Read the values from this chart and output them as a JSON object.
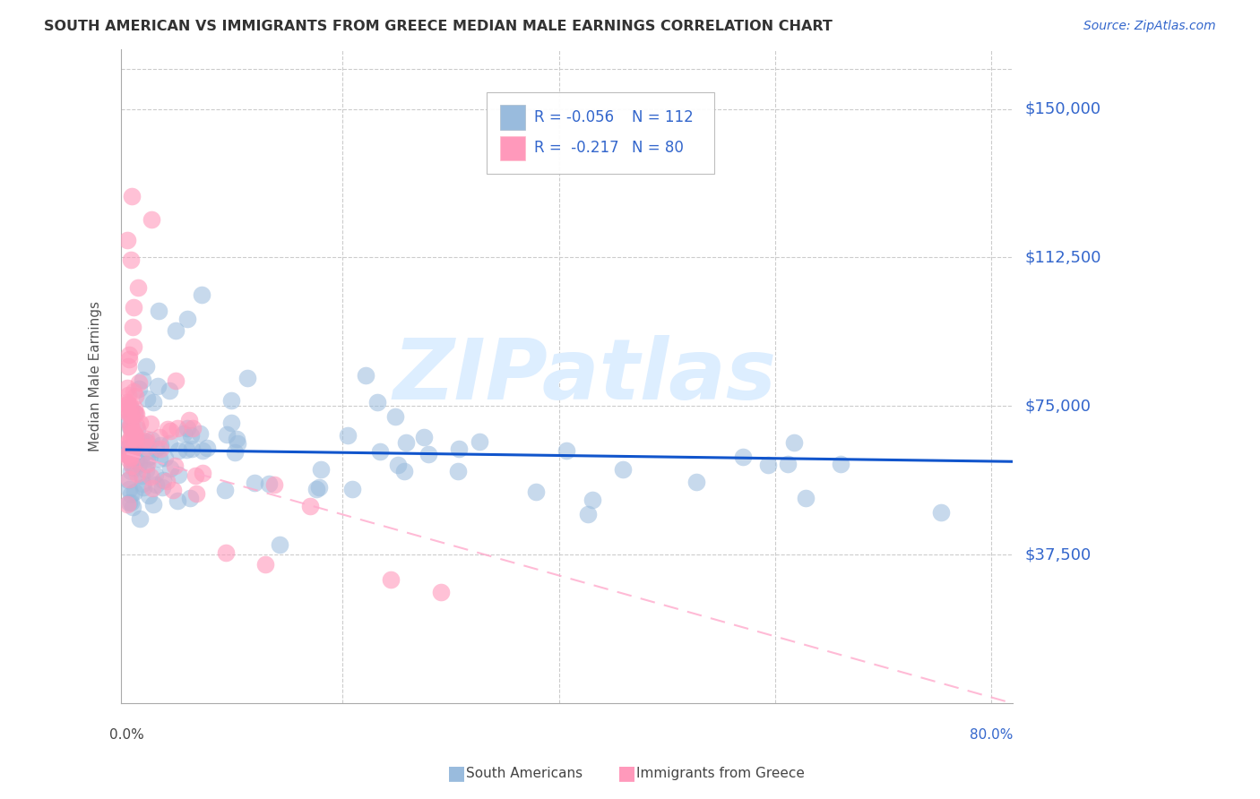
{
  "title": "SOUTH AMERICAN VS IMMIGRANTS FROM GREECE MEDIAN MALE EARNINGS CORRELATION CHART",
  "source": "Source: ZipAtlas.com",
  "ylabel": "Median Male Earnings",
  "ytick_labels": [
    "$37,500",
    "$75,000",
    "$112,500",
    "$150,000"
  ],
  "ytick_values": [
    37500,
    75000,
    112500,
    150000
  ],
  "ymin": 0,
  "ymax": 165000,
  "xmin": -0.005,
  "xmax": 0.82,
  "color_blue": "#99BBDD",
  "color_pink": "#FF99BB",
  "color_line_blue": "#1155CC",
  "color_line_pink": "#FFAACC",
  "watermark_text": "ZIPatlas",
  "watermark_color": "#DDEEFF",
  "background_color": "#FFFFFF",
  "grid_color": "#CCCCCC",
  "title_color": "#333333",
  "axis_label_color": "#555555",
  "ytick_color": "#3366CC",
  "text_r_color": "#3366CC",
  "text_n_color": "#3366CC"
}
